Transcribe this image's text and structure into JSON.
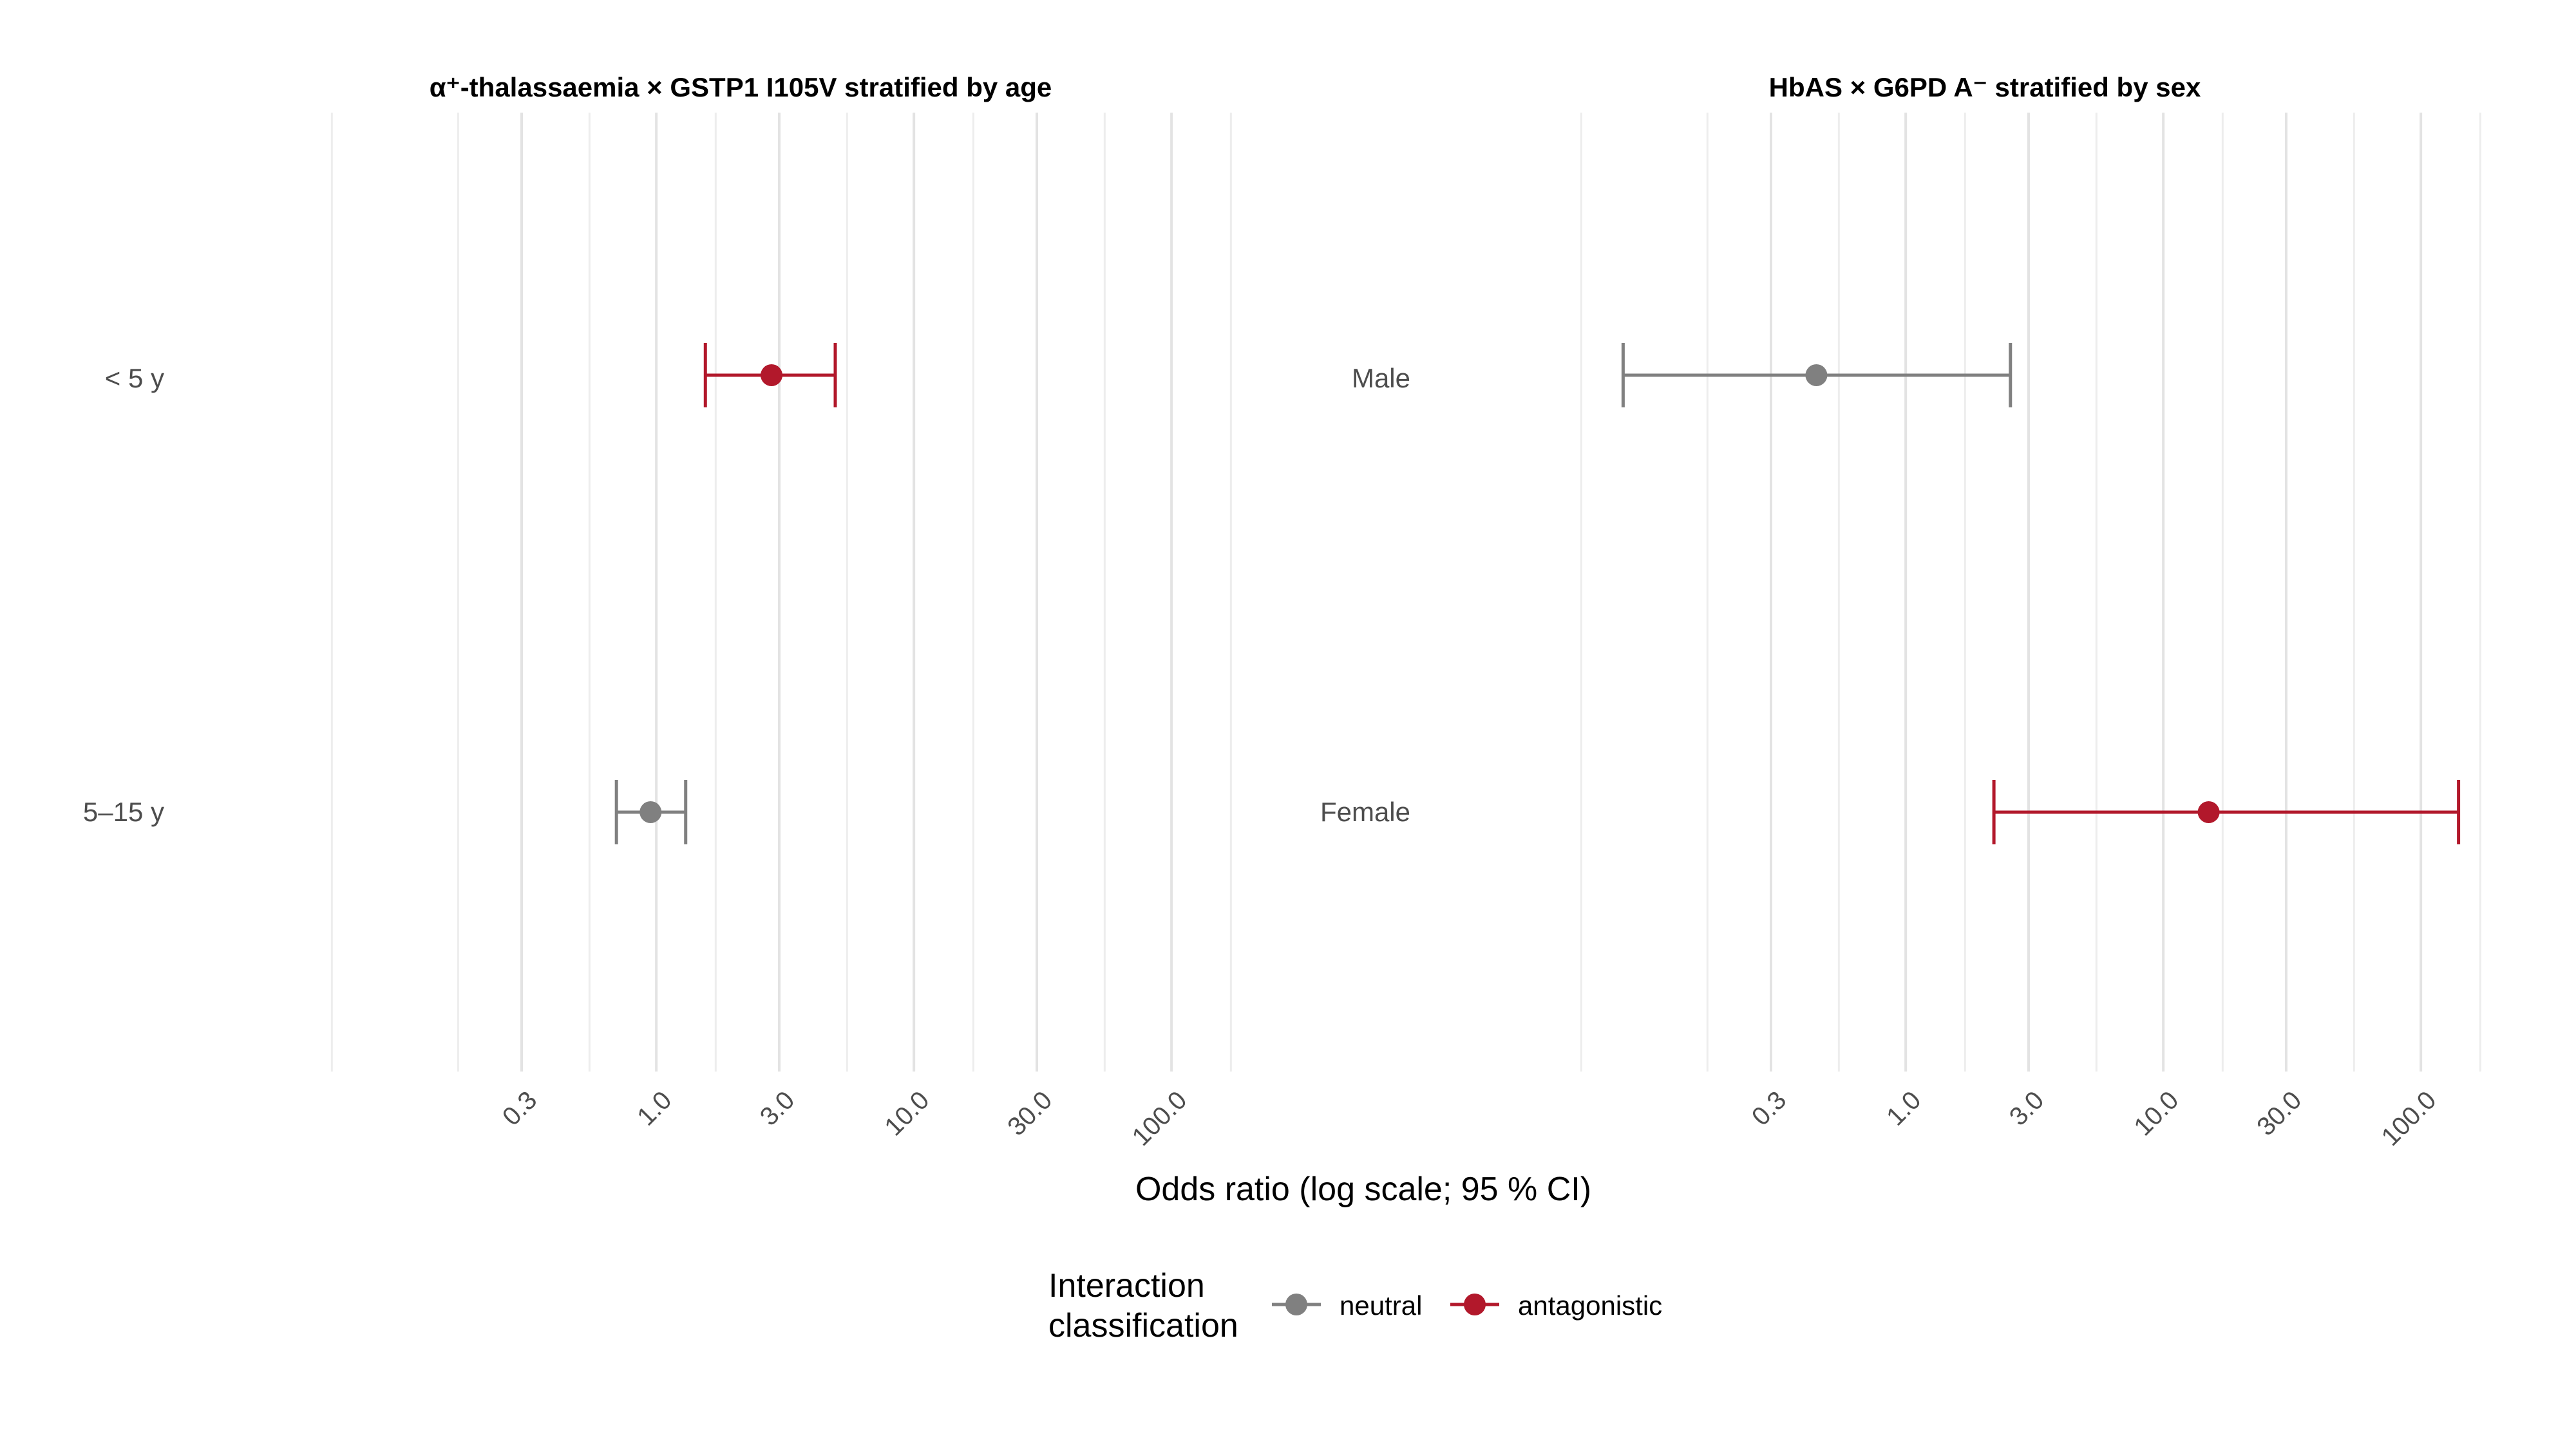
{
  "chart_data": {
    "type": "scatter",
    "subtype": "forest-plot-with-ci",
    "xlabel": "Odds ratio (log scale; 95 % CI)",
    "xscale": "log",
    "xlim": [
      0.03,
      300
    ],
    "x_ticks": [
      0.3,
      1,
      3,
      10,
      30,
      100
    ],
    "x_tick_labels": [
      "0.3",
      "1.0",
      "3.0",
      "10.0",
      "30.0",
      "100.0"
    ],
    "grid": true,
    "legend": {
      "title": "Interaction classification",
      "title_lines": [
        "Interaction",
        "classification"
      ],
      "position": "bottom",
      "entries": [
        {
          "label": "neutral",
          "color": "#808080"
        },
        {
          "label": "antagonistic",
          "color": "#b2182b"
        }
      ]
    },
    "panels": [
      {
        "title": "α⁺-thalassaemia × GSTP1 I105V stratified by age",
        "rows": [
          {
            "label": "< 5 y",
            "or": 2.8,
            "lower": 1.55,
            "upper": 4.95,
            "classification": "antagonistic"
          },
          {
            "label": "5–15 y",
            "or": 0.95,
            "lower": 0.7,
            "upper": 1.3,
            "classification": "neutral"
          }
        ]
      },
      {
        "title": "HbAS × G6PD A⁻ stratified by sex",
        "rows": [
          {
            "label": "Male",
            "or": 0.45,
            "lower": 0.08,
            "upper": 2.55,
            "classification": "neutral"
          },
          {
            "label": "Female",
            "or": 15,
            "lower": 2.2,
            "upper": 140,
            "classification": "antagonistic"
          }
        ]
      }
    ]
  }
}
